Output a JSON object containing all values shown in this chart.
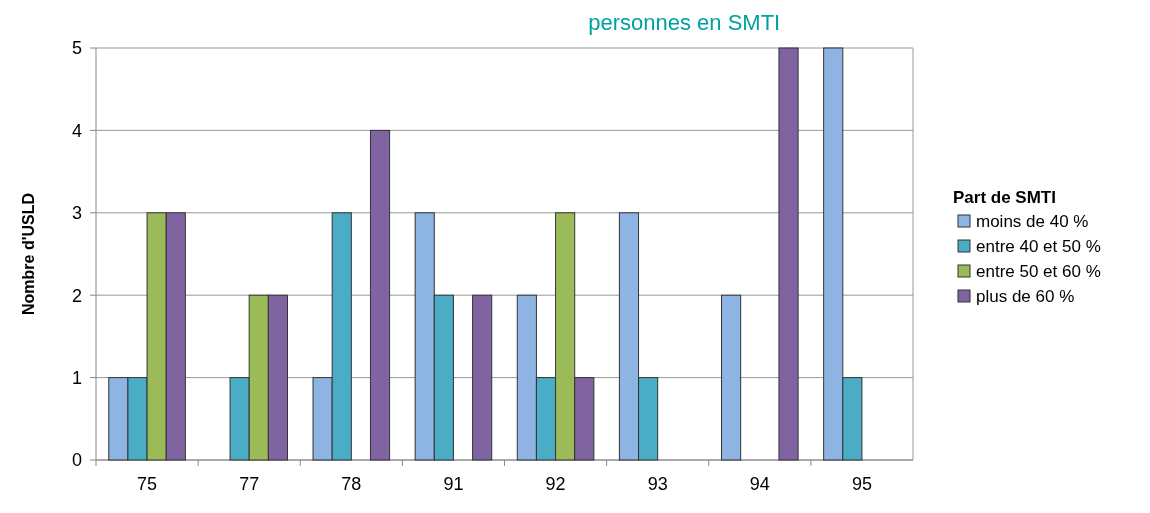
{
  "chart_data": {
    "type": "bar",
    "title": "personnes en SMTI",
    "ylabel": "Nombre d'USLD",
    "legend_title": "Part de SMTI",
    "categories": [
      "75",
      "77",
      "78",
      "91",
      "92",
      "93",
      "94",
      "95"
    ],
    "series": [
      {
        "name": "moins de 40 %",
        "color": "#8eb4e3",
        "values": [
          1,
          0,
          1,
          3,
          2,
          3,
          2,
          5
        ]
      },
      {
        "name": "entre 40 et 50 %",
        "color": "#4bacc6",
        "values": [
          1,
          1,
          3,
          2,
          1,
          1,
          0,
          1
        ]
      },
      {
        "name": "entre 50 et 60 %",
        "color": "#9bbb59",
        "values": [
          3,
          2,
          0,
          0,
          3,
          0,
          0,
          0
        ]
      },
      {
        "name": "plus de 60 %",
        "color": "#8064a2",
        "values": [
          3,
          2,
          4,
          2,
          1,
          0,
          5,
          0
        ]
      }
    ],
    "ylim": [
      0,
      5
    ],
    "yticks": [
      0,
      1,
      2,
      3,
      4,
      5
    ],
    "grid": "y",
    "legend": "right"
  }
}
